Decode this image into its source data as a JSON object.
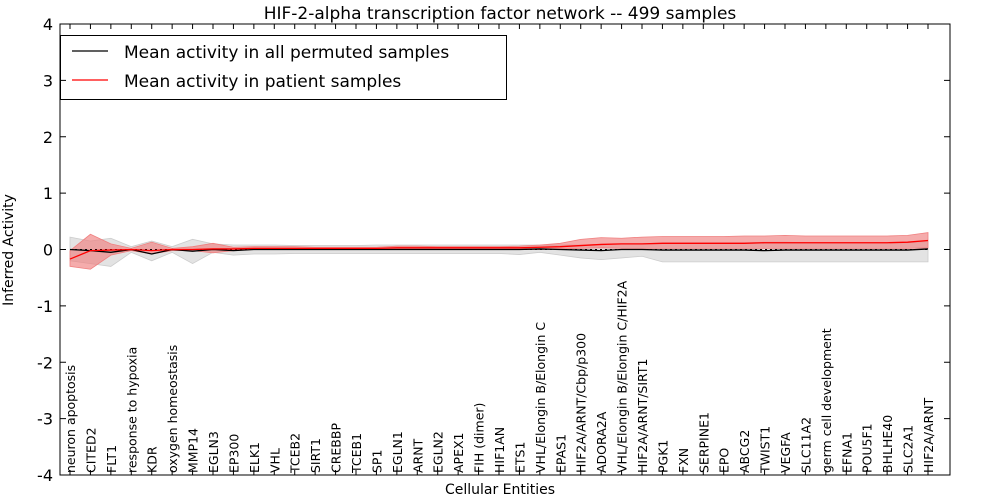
{
  "chart_data": {
    "type": "line",
    "title": "HIF-2-alpha transcription factor network -- 499 samples",
    "xlabel": "Cellular Entities",
    "ylabel": "Inferred Activity",
    "ylim": [
      -4,
      4
    ],
    "yticks": [
      -4,
      -3,
      -2,
      -1,
      0,
      1,
      2,
      3,
      4
    ],
    "legend_position": "top-left",
    "categories": [
      "neuron apoptosis",
      "CITED2",
      "FLT1",
      "response to hypoxia",
      "KDR",
      "oxygen homeostasis",
      "MMP14",
      "EGLN3",
      "EP300",
      "ELK1",
      "VHL",
      "TCEB2",
      "SIRT1",
      "CREBBP",
      "TCEB1",
      "SP1",
      "EGLN1",
      "ARNT",
      "EGLN2",
      "APEX1",
      "FIH (dimer)",
      "HIF1AN",
      "ETS1",
      "VHL/Elongin B/Elongin C",
      "EPAS1",
      "HIF2A/ARNT/Cbp/p300",
      "ADORA2A",
      "VHL/Elongin B/Elongin C/HIF2A",
      "HIF2A/ARNT/SIRT1",
      "PGK1",
      "FXN",
      "SERPINE1",
      "EPO",
      "ABCG2",
      "TWIST1",
      "VEGFA",
      "SLC11A2",
      "germ cell development",
      "EFNA1",
      "POU5F1",
      "BHLHE40",
      "SLC2A1",
      "HIF2A/ARNT"
    ],
    "series": [
      {
        "name": "Mean activity in all permuted samples",
        "color": "#000000",
        "band_color": "#cccccc",
        "values": [
          0,
          -0.02,
          -0.05,
          0,
          -0.08,
          0,
          -0.03,
          0,
          -0.02,
          0,
          0,
          0,
          0,
          0,
          0,
          0,
          0,
          0,
          0,
          0,
          0,
          0,
          0,
          0.01,
          0,
          -0.01,
          -0.02,
          0,
          0,
          -0.01,
          -0.01,
          -0.01,
          -0.01,
          -0.01,
          -0.02,
          -0.01,
          -0.01,
          -0.01,
          -0.01,
          -0.01,
          -0.01,
          -0.01,
          0.01
        ],
        "lower": [
          -0.2,
          -0.25,
          -0.3,
          -0.05,
          -0.2,
          -0.05,
          -0.25,
          -0.05,
          -0.1,
          -0.08,
          -0.08,
          -0.07,
          -0.07,
          -0.07,
          -0.07,
          -0.07,
          -0.07,
          -0.07,
          -0.07,
          -0.07,
          -0.07,
          -0.07,
          -0.09,
          -0.05,
          -0.1,
          -0.15,
          -0.18,
          -0.15,
          -0.12,
          -0.22,
          -0.22,
          -0.22,
          -0.22,
          -0.22,
          -0.22,
          -0.22,
          -0.22,
          -0.22,
          -0.22,
          -0.22,
          -0.22,
          -0.22,
          -0.22
        ],
        "upper": [
          0.22,
          0.15,
          0.2,
          0.05,
          0.15,
          0.05,
          0.18,
          0.1,
          0.08,
          0.08,
          0.08,
          0.07,
          0.07,
          0.07,
          0.07,
          0.08,
          0.08,
          0.08,
          0.08,
          0.08,
          0.08,
          0.08,
          0.08,
          0.08,
          0.08,
          0.08,
          0.09,
          0.1,
          0.1,
          0.12,
          0.12,
          0.12,
          0.12,
          0.12,
          0.13,
          0.13,
          0.12,
          0.12,
          0.12,
          0.12,
          0.12,
          0.12,
          0.14
        ]
      },
      {
        "name": "Mean activity in patient samples",
        "color": "#ff0000",
        "band_color": "#f08080",
        "values": [
          -0.17,
          -0.02,
          -0.01,
          0,
          -0.02,
          0,
          0,
          0.01,
          0.01,
          0.02,
          0.02,
          0.02,
          0.02,
          0.02,
          0.02,
          0.02,
          0.03,
          0.03,
          0.03,
          0.03,
          0.03,
          0.03,
          0.03,
          0.04,
          0.05,
          0.07,
          0.09,
          0.1,
          0.1,
          0.11,
          0.11,
          0.11,
          0.11,
          0.11,
          0.12,
          0.12,
          0.12,
          0.12,
          0.12,
          0.12,
          0.12,
          0.13,
          0.16
        ],
        "lower": [
          -0.3,
          -0.35,
          -0.1,
          -0.02,
          -0.08,
          -0.02,
          -0.02,
          -0.06,
          -0.02,
          0,
          0,
          0,
          0,
          0,
          0,
          0,
          0,
          0,
          0,
          0,
          0,
          0,
          0,
          0,
          0.01,
          0.02,
          0.03,
          0.02,
          0.02,
          0.02,
          0.02,
          0.02,
          0.02,
          0.02,
          0.02,
          0.02,
          0.02,
          0.02,
          0.02,
          0.02,
          0.02,
          0.02,
          0.03
        ],
        "upper": [
          -0.02,
          0.27,
          0.1,
          0.02,
          0.13,
          0.02,
          0.05,
          0.11,
          0.04,
          0.05,
          0.05,
          0.05,
          0.04,
          0.04,
          0.04,
          0.04,
          0.06,
          0.06,
          0.05,
          0.05,
          0.05,
          0.05,
          0.06,
          0.08,
          0.11,
          0.18,
          0.21,
          0.2,
          0.22,
          0.23,
          0.23,
          0.23,
          0.23,
          0.24,
          0.24,
          0.25,
          0.24,
          0.24,
          0.24,
          0.24,
          0.24,
          0.25,
          0.3
        ]
      }
    ]
  }
}
